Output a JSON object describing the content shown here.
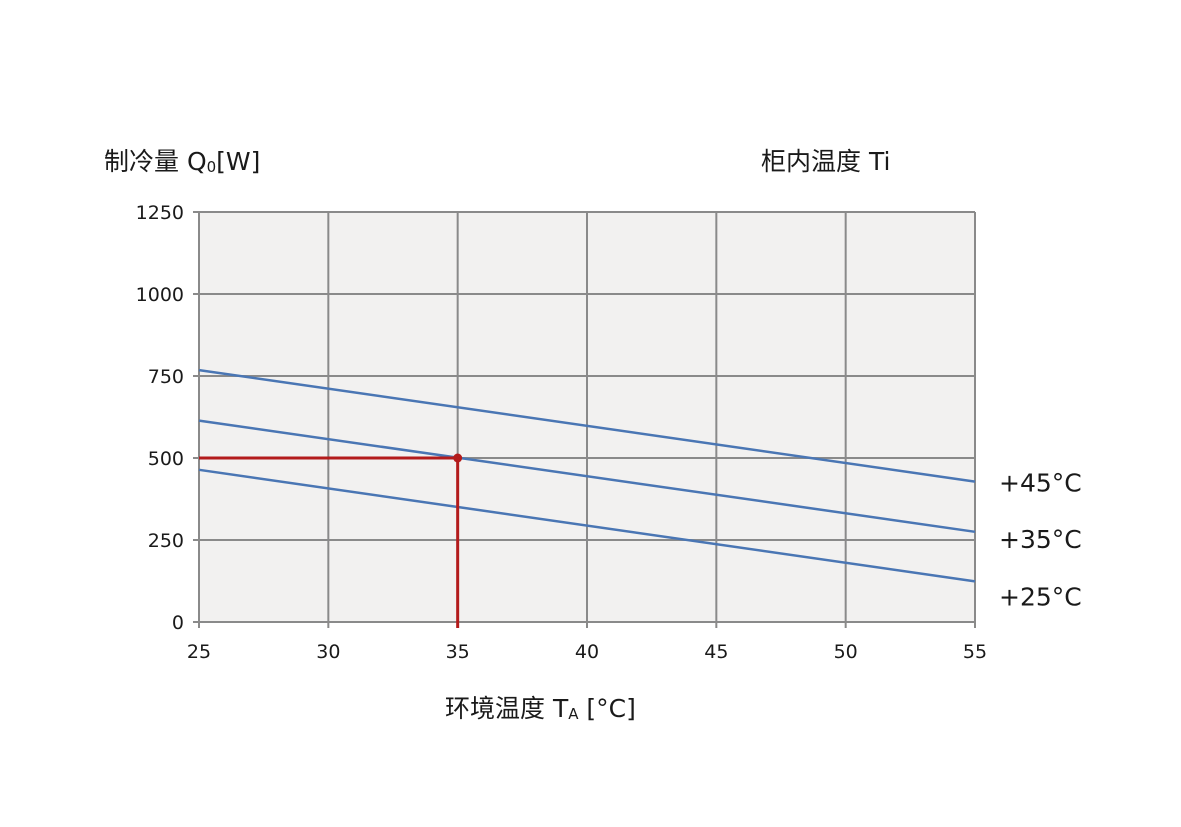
{
  "chart_data": {
    "type": "line",
    "ylabel": {
      "main": "制冷量 Q",
      "sub": "0",
      "unit": "[W]"
    },
    "xlabel": {
      "main": "环境温度 T",
      "sub": "A",
      "unit": " [°C]"
    },
    "legend_title": "柜内温度 Ti",
    "xlim": [
      25,
      55
    ],
    "ylim": [
      0,
      1250
    ],
    "x_ticks": [
      25,
      30,
      35,
      40,
      45,
      50,
      55
    ],
    "x_tick_labels": [
      "25",
      "30",
      "35",
      "40",
      "45",
      "50",
      "55"
    ],
    "y_ticks": [
      0,
      250,
      500,
      750,
      1000,
      1250
    ],
    "y_tick_labels": [
      "0",
      "250",
      "500",
      "750",
      "1000",
      "1250"
    ],
    "grid": true,
    "series": [
      {
        "name": "+45°C",
        "x": [
          25,
          55
        ],
        "y": [
          768,
          428
        ]
      },
      {
        "name": "+35°C",
        "x": [
          25,
          55
        ],
        "y": [
          614,
          275
        ]
      },
      {
        "name": "+25°C",
        "x": [
          25,
          55
        ],
        "y": [
          464,
          124
        ]
      }
    ],
    "annotation": {
      "type": "reference-point",
      "x": 35,
      "y": 500
    },
    "colors": {
      "series": "#4a76b4",
      "reference": "#b31b1b",
      "grid": "#8a8a8a",
      "plot_bg": "#f2f1f0"
    }
  }
}
